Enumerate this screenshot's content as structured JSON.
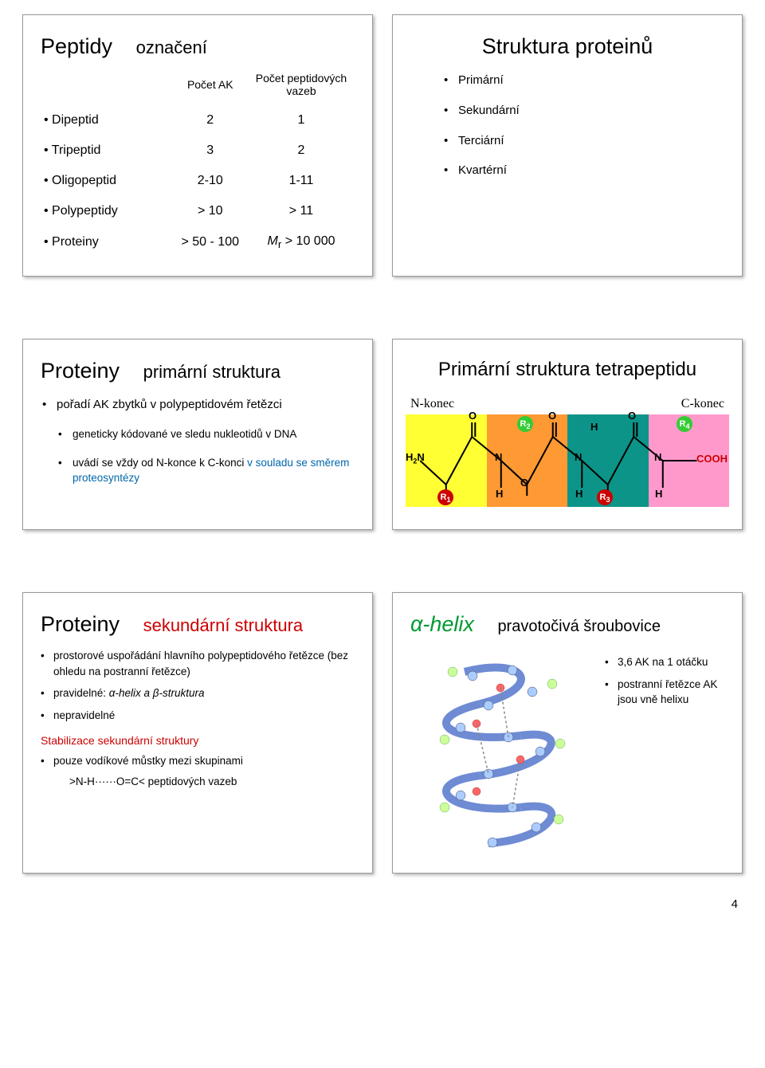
{
  "panel1": {
    "title": "Peptidy",
    "subtitle": "označení",
    "col1": "Počet AK",
    "col2": "Počet peptidových vazeb",
    "rows": [
      {
        "name": "Dipeptid",
        "ak": "2",
        "bonds": "1"
      },
      {
        "name": "Tripeptid",
        "ak": "3",
        "bonds": "2"
      },
      {
        "name": "Oligopeptid",
        "ak": "2-10",
        "bonds": "1-11"
      },
      {
        "name": "Polypeptidy",
        "ak": "> 10",
        "bonds": "> 11"
      },
      {
        "name": "Proteiny",
        "ak": "> 50 - 100",
        "bonds_html": true,
        "bonds_pre": "M",
        "bonds_sub": "r",
        "bonds_post": " > 10 000"
      }
    ]
  },
  "panel2": {
    "title": "Struktura proteinů",
    "items": [
      "Primární",
      "Sekundární",
      "Terciární",
      "Kvartérní"
    ]
  },
  "panel3": {
    "title": "Proteiny",
    "subtitle": "primární struktura",
    "b1": "pořadí AK zbytků v polypeptidovém řetězci",
    "b2": "geneticky kódované ve sledu nukleotidů v DNA",
    "b3_a": "uvádí se vždy od N-konce k C-konci ",
    "b3_b": "v souladu se směrem proteosyntézy"
  },
  "panel4": {
    "title": "Primární struktura tetrapeptidu",
    "nlabel": "N-konec",
    "clabel": "C-konec",
    "H2N": "H",
    "H2N2": "2",
    "H2N3": "N",
    "COOH": "COOH",
    "O": "O",
    "N": "N",
    "H": "H",
    "R1": "R",
    "R1s": "1",
    "R2": "R",
    "R2s": "2",
    "R3": "R",
    "R3s": "3",
    "R4": "R",
    "R4s": "4"
  },
  "panel5": {
    "title": "Proteiny",
    "subtitle": "sekundární struktura",
    "b1": "prostorové uspořádání hlavního polypeptidového řetězce (bez ohledu na postranní řetězce)",
    "b2a": "pravidelné: ",
    "b2b": "α-helix a β-struktura",
    "b3": "nepravidelné",
    "red": "Stabilizace sekundární struktury",
    "b4": "pouze vodíkové můstky mezi skupinami",
    "b5": ">N-H······O=C<  peptidových vazeb"
  },
  "panel6": {
    "title_alpha": "α-helix",
    "title_rest": "pravotočivá šroubovice",
    "s1": "3,6 AK na 1 otáčku",
    "s2": "postranní řetězce AK jsou vně helixu"
  },
  "pagenum": "4"
}
